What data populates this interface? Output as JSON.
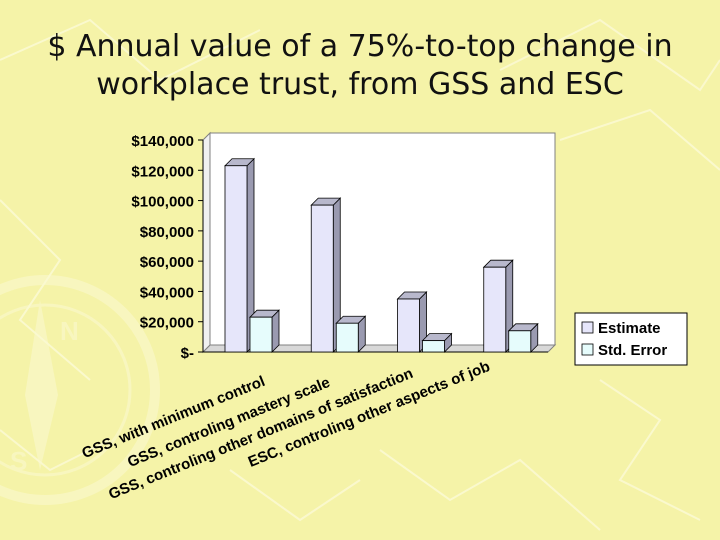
{
  "slide": {
    "title_line1": "$ Annual value of a 75%-to-top change in",
    "title_line2": "workplace trust, from GSS and ESC"
  },
  "colors": {
    "background": "#F5F3A8",
    "estimate": "#E6E6FA",
    "stderr": "#E6FCFC",
    "plot_bg": "#FFFFFF"
  },
  "chart_data": {
    "type": "bar",
    "title": "",
    "xlabel": "",
    "ylabel": "",
    "ylim": [
      0,
      140000
    ],
    "grid": false,
    "legend_position": "right",
    "y_ticks": [
      {
        "value": 0,
        "label": "$-"
      },
      {
        "value": 20000,
        "label": "$20,000"
      },
      {
        "value": 40000,
        "label": "$40,000"
      },
      {
        "value": 60000,
        "label": "$60,000"
      },
      {
        "value": 80000,
        "label": "$80,000"
      },
      {
        "value": 100000,
        "label": "$100,000"
      },
      {
        "value": 120000,
        "label": "$120,000"
      },
      {
        "value": 140000,
        "label": "$140,000"
      }
    ],
    "categories": [
      "GSS, with minimum control",
      "GSS, controling mastery scale",
      "GSS, controling other domains of satisfaction",
      "ESC, controling other aspects of job"
    ],
    "series": [
      {
        "name": "Estimate",
        "values": [
          123000,
          97000,
          35000,
          56000
        ]
      },
      {
        "name": "Std. Error",
        "values": [
          23000,
          19000,
          7500,
          14000
        ]
      }
    ]
  }
}
